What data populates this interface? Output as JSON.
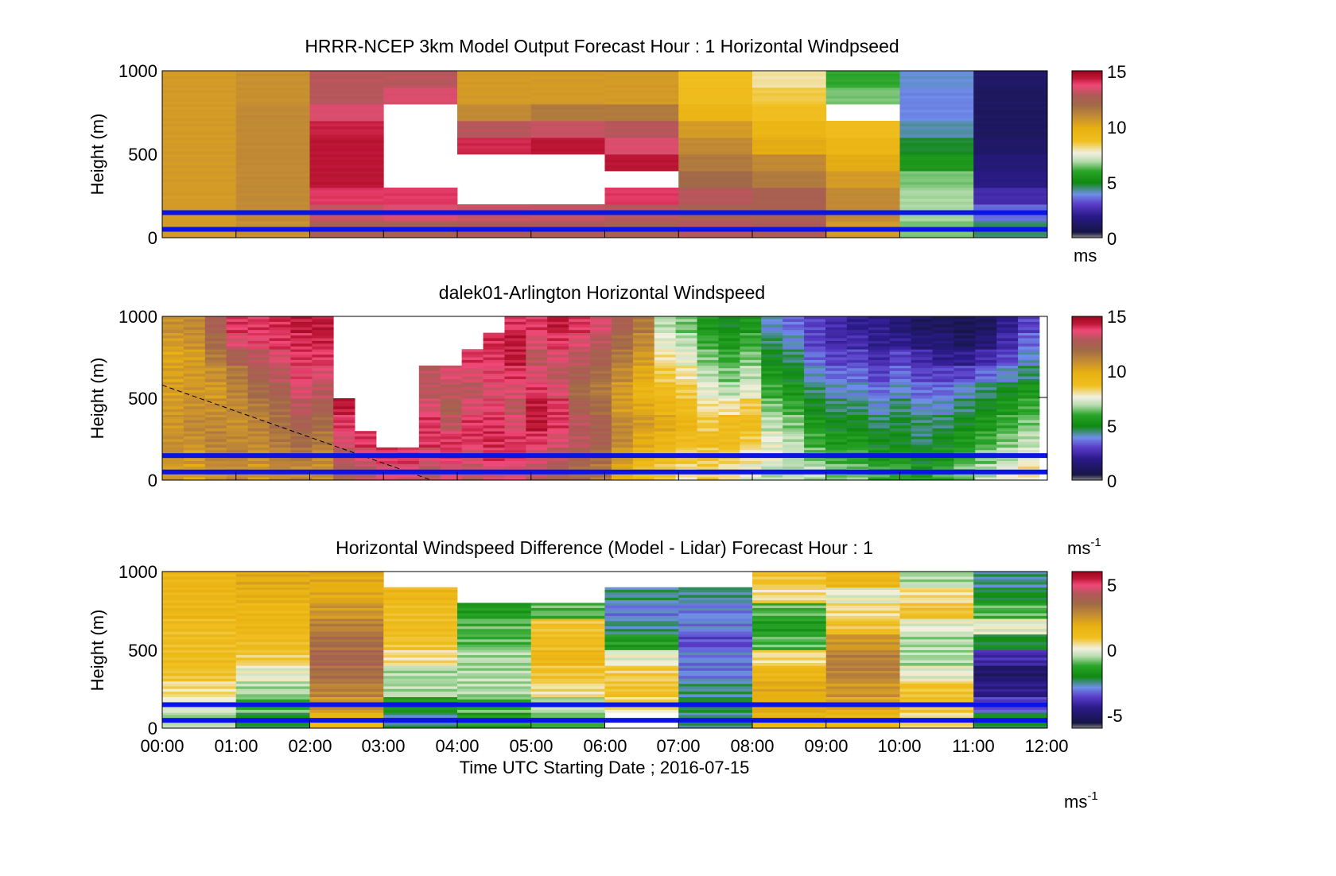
{
  "figure": {
    "xlabel": "Time UTC  Starting Date ; 2016-07-15",
    "x_ticks": [
      "00:00",
      "01:00",
      "02:00",
      "03:00",
      "04:00",
      "05:00",
      "06:00",
      "07:00",
      "08:00",
      "09:00",
      "10:00",
      "11:00",
      "12:00"
    ]
  },
  "chart_data": [
    {
      "type": "heatmap",
      "title": "HRRR-NCEP 3km Model Output   Forecast Hour : 1 Horizontal Windpseed",
      "ylabel": "Height (m)",
      "ylim": [
        0,
        1000
      ],
      "y_ticks": [
        "0",
        "500",
        "1000"
      ],
      "xlim_hours": [
        0,
        12
      ],
      "colorbar": {
        "range": [
          0,
          15
        ],
        "ticks": [
          "0",
          "5",
          "10",
          "15"
        ],
        "label": "ms"
      },
      "reference_heights_m": [
        50,
        150
      ],
      "columns_hourly_speed": [
        [
          10.5,
          10.5,
          10.5,
          10.5,
          10.5,
          10.5,
          10.5,
          10.5,
          10.5,
          10.5
        ],
        [
          10.8,
          11.0,
          11.0,
          11.0,
          11.0,
          11.0,
          11.0,
          11.0,
          10.8,
          10.8
        ],
        [
          12.5,
          13.2,
          14.0,
          14.5,
          14.5,
          14.5,
          14.3,
          13.5,
          13.0,
          13.0
        ],
        [
          12.5,
          13.5,
          14.0,
          null,
          null,
          null,
          null,
          null,
          13.5,
          13.0
        ],
        [
          12.8,
          13.2,
          null,
          null,
          null,
          14.2,
          13.0,
          11.0,
          10.5,
          10.5
        ],
        [
          12.8,
          13.2,
          null,
          null,
          null,
          14.5,
          13.2,
          11.5,
          10.5,
          10.5
        ],
        [
          12.5,
          13.0,
          14.0,
          null,
          14.5,
          13.5,
          13.0,
          11.5,
          10.5,
          10.5
        ],
        [
          13.0,
          12.5,
          13.0,
          12.0,
          11.5,
          11.0,
          10.5,
          9.5,
          9.0,
          8.8
        ],
        [
          12.8,
          12.5,
          12.5,
          11.5,
          11.0,
          10.0,
          9.5,
          8.8,
          8.5,
          8.0
        ],
        [
          10.5,
          11.0,
          11.0,
          10.5,
          10.0,
          9.5,
          9.0,
          null,
          6.5,
          6.0
        ],
        [
          6.5,
          6.8,
          6.8,
          6.5,
          5.5,
          4.8,
          4.2,
          3.8,
          3.8,
          4.0
        ],
        [
          4.5,
          3.5,
          2.5,
          1.8,
          1.5,
          1.2,
          1.0,
          1.0,
          1.0,
          1.2
        ]
      ]
    },
    {
      "type": "heatmap",
      "title": "dalek01-Arlington  Horizontal Windspeed",
      "ylabel": "Height (m)",
      "ylim": [
        0,
        1000
      ],
      "y_ticks": [
        "0",
        "500",
        "1000"
      ],
      "xlim_hours": [
        0,
        12
      ],
      "colorbar": {
        "range": [
          0,
          15
        ],
        "ticks": [
          "0",
          "5",
          "10",
          "15"
        ],
        "label": "ms",
        "label_exponent": "-1"
      },
      "reference_heights_m": [
        50,
        150
      ],
      "boundary_layer_line": {
        "start": [
          0,
          580
        ],
        "end": [
          3.65,
          0
        ]
      },
      "columns_quarter_hour_speed": [
        [
          10.5,
          10.8,
          10.8,
          10.6,
          10.5,
          10.4,
          10.3,
          10.2,
          10.5,
          10.8
        ],
        [
          10.2,
          10.5,
          10.8,
          11.0,
          10.8,
          10.6,
          10.5,
          10.4,
          10.8,
          11.0
        ],
        [
          10.8,
          11.0,
          11.2,
          11.0,
          10.8,
          10.5,
          10.8,
          11.5,
          12.0,
          12.5
        ],
        [
          11.0,
          11.2,
          11.0,
          10.8,
          11.0,
          11.2,
          11.5,
          12.5,
          13.5,
          14.0
        ],
        [
          10.5,
          10.8,
          11.0,
          11.2,
          11.5,
          12.0,
          12.5,
          13.0,
          13.8,
          14.0
        ],
        [
          11.0,
          11.2,
          11.5,
          11.8,
          12.0,
          12.5,
          13.0,
          13.5,
          14.0,
          14.2
        ],
        [
          11.0,
          11.5,
          12.0,
          12.5,
          13.0,
          13.5,
          13.8,
          14.0,
          14.2,
          14.5
        ],
        [
          10.8,
          11.0,
          11.5,
          12.0,
          12.5,
          13.0,
          13.5,
          14.0,
          14.3,
          14.5
        ],
        [
          12.5,
          13.0,
          13.5,
          14.0,
          14.5,
          null,
          null,
          null,
          null,
          null
        ],
        [
          13.0,
          13.5,
          14.0,
          null,
          null,
          null,
          null,
          null,
          null,
          null
        ],
        [
          13.5,
          14.0,
          null,
          null,
          null,
          null,
          null,
          null,
          null,
          null
        ],
        [
          13.5,
          14.0,
          null,
          null,
          null,
          null,
          null,
          null,
          null,
          null
        ],
        [
          13.0,
          13.5,
          14.0,
          14.0,
          13.5,
          13.0,
          13.0,
          null,
          null,
          null
        ],
        [
          13.5,
          14.0,
          14.0,
          13.0,
          12.5,
          13.0,
          13.5,
          null,
          null,
          null
        ],
        [
          13.0,
          13.5,
          14.0,
          14.0,
          13.5,
          13.0,
          13.5,
          14.0,
          null,
          null
        ],
        [
          13.5,
          14.0,
          14.2,
          14.0,
          13.8,
          13.5,
          13.8,
          14.0,
          14.2,
          null
        ],
        [
          13.5,
          14.0,
          14.0,
          13.5,
          13.0,
          13.5,
          14.0,
          14.5,
          14.5,
          14.0
        ],
        [
          13.0,
          13.5,
          14.0,
          14.5,
          14.5,
          14.0,
          13.5,
          13.0,
          13.5,
          14.0
        ],
        [
          12.5,
          13.0,
          13.5,
          14.0,
          14.0,
          13.5,
          13.0,
          13.5,
          14.0,
          14.5
        ],
        [
          12.0,
          12.5,
          13.0,
          13.0,
          12.5,
          12.0,
          12.5,
          13.0,
          13.5,
          14.0
        ],
        [
          11.5,
          12.0,
          12.5,
          12.5,
          12.0,
          11.5,
          12.0,
          12.5,
          13.0,
          13.5
        ],
        [
          10.0,
          10.5,
          11.0,
          11.0,
          10.5,
          10.5,
          11.0,
          11.5,
          12.0,
          12.5
        ],
        [
          9.0,
          9.5,
          10.0,
          10.5,
          10.0,
          9.5,
          10.0,
          10.5,
          11.0,
          11.5
        ],
        [
          8.5,
          9.0,
          9.5,
          10.0,
          9.5,
          9.0,
          8.5,
          8.0,
          7.5,
          7.0
        ],
        [
          8.0,
          8.5,
          9.0,
          9.5,
          9.0,
          8.5,
          8.0,
          7.5,
          7.0,
          6.5
        ],
        [
          8.5,
          8.5,
          9.0,
          8.5,
          8.0,
          7.5,
          7.0,
          6.5,
          6.0,
          5.5
        ],
        [
          8.0,
          8.5,
          9.0,
          9.0,
          8.0,
          7.0,
          6.5,
          6.0,
          5.5,
          5.0
        ],
        [
          7.5,
          8.0,
          8.5,
          9.0,
          8.5,
          7.5,
          7.0,
          6.5,
          6.0,
          5.5
        ],
        [
          7.0,
          7.5,
          7.5,
          7.0,
          6.5,
          6.0,
          5.5,
          5.0,
          4.5,
          4.0
        ],
        [
          7.0,
          7.0,
          7.0,
          6.5,
          6.0,
          5.5,
          5.0,
          4.5,
          4.0,
          3.5
        ],
        [
          7.0,
          6.5,
          6.0,
          5.5,
          5.0,
          4.5,
          4.0,
          3.5,
          3.0,
          3.0
        ],
        [
          6.5,
          6.0,
          5.5,
          5.0,
          4.5,
          4.0,
          3.5,
          3.0,
          2.5,
          2.5
        ],
        [
          6.5,
          6.0,
          5.5,
          5.0,
          4.5,
          4.0,
          3.5,
          3.0,
          2.5,
          2.0
        ],
        [
          6.0,
          5.5,
          5.0,
          4.5,
          4.0,
          3.5,
          3.0,
          2.5,
          2.0,
          2.0
        ],
        [
          6.0,
          5.5,
          5.0,
          4.8,
          4.5,
          4.0,
          3.5,
          3.0,
          2.0,
          1.5
        ],
        [
          5.5,
          5.0,
          4.5,
          4.5,
          4.0,
          3.5,
          3.0,
          2.5,
          1.5,
          1.0
        ],
        [
          6.0,
          5.5,
          5.0,
          4.5,
          4.0,
          3.5,
          3.0,
          2.0,
          1.5,
          1.0
        ],
        [
          6.5,
          6.0,
          5.5,
          5.0,
          4.5,
          4.0,
          3.0,
          2.0,
          1.0,
          0.8
        ],
        [
          7.0,
          6.5,
          6.0,
          5.5,
          5.0,
          4.5,
          3.5,
          2.5,
          1.5,
          1.0
        ],
        [
          7.5,
          7.0,
          6.5,
          6.0,
          5.5,
          5.0,
          4.0,
          3.0,
          2.5,
          2.0
        ],
        [
          8.0,
          7.5,
          7.0,
          6.5,
          6.0,
          5.5,
          4.5,
          4.0,
          3.5,
          3.0
        ]
      ]
    },
    {
      "type": "heatmap",
      "title": "Horizontal Windspeed Difference (Model - Lidar) Forecast Hour : 1",
      "ylabel": "Height (m)",
      "ylim": [
        0,
        1000
      ],
      "y_ticks": [
        "0",
        "500",
        "1000"
      ],
      "xlim_hours": [
        0,
        12
      ],
      "colorbar": {
        "range": [
          -6,
          6
        ],
        "ticks": [
          "-5",
          "0",
          "5"
        ],
        "label": "ms",
        "label_exponent": "-1"
      },
      "reference_heights_m": [
        50,
        150
      ],
      "columns_hourly_difference": [
        [
          -0.5,
          0.0,
          0.5,
          1.0,
          1.2,
          1.2,
          1.2,
          1.5,
          1.5,
          1.5
        ],
        [
          -2.0,
          -1.0,
          -0.5,
          0.0,
          0.8,
          1.2,
          1.5,
          1.5,
          1.8,
          2.0
        ],
        [
          1.5,
          2.5,
          3.0,
          3.5,
          3.8,
          3.5,
          3.0,
          2.5,
          2.0,
          2.0
        ],
        [
          -2.5,
          -1.5,
          -0.5,
          -0.5,
          0.5,
          1.0,
          1.2,
          1.2,
          1.5,
          null
        ],
        [
          -1.5,
          -1.0,
          -0.5,
          -0.5,
          -0.5,
          -1.0,
          -1.0,
          -1.5,
          null,
          null
        ],
        [
          -1.0,
          -0.5,
          0.5,
          1.0,
          1.5,
          1.2,
          1.0,
          -1.0,
          null,
          null
        ],
        [
          null,
          0.5,
          1.0,
          0.8,
          0.0,
          -1.5,
          -2.5,
          -3.0,
          -2.5,
          null
        ],
        [
          -2.5,
          -2.0,
          -2.5,
          -3.0,
          -3.0,
          -3.5,
          -3.0,
          -3.0,
          -2.5,
          null
        ],
        [
          1.5,
          2.0,
          2.0,
          1.5,
          0.5,
          -1.0,
          -1.5,
          -1.0,
          0.5,
          1.0
        ],
        [
          1.5,
          2.0,
          2.5,
          3.0,
          3.0,
          2.5,
          1.0,
          0.5,
          0.0,
          1.5
        ],
        [
          0.5,
          1.0,
          1.0,
          0.0,
          -0.5,
          -0.5,
          0.0,
          1.0,
          0.5,
          -0.5
        ],
        [
          -2.0,
          -3.5,
          -4.5,
          -5.0,
          -4.0,
          -2.0,
          0.0,
          -1.0,
          -2.0,
          -2.5
        ]
      ]
    }
  ]
}
